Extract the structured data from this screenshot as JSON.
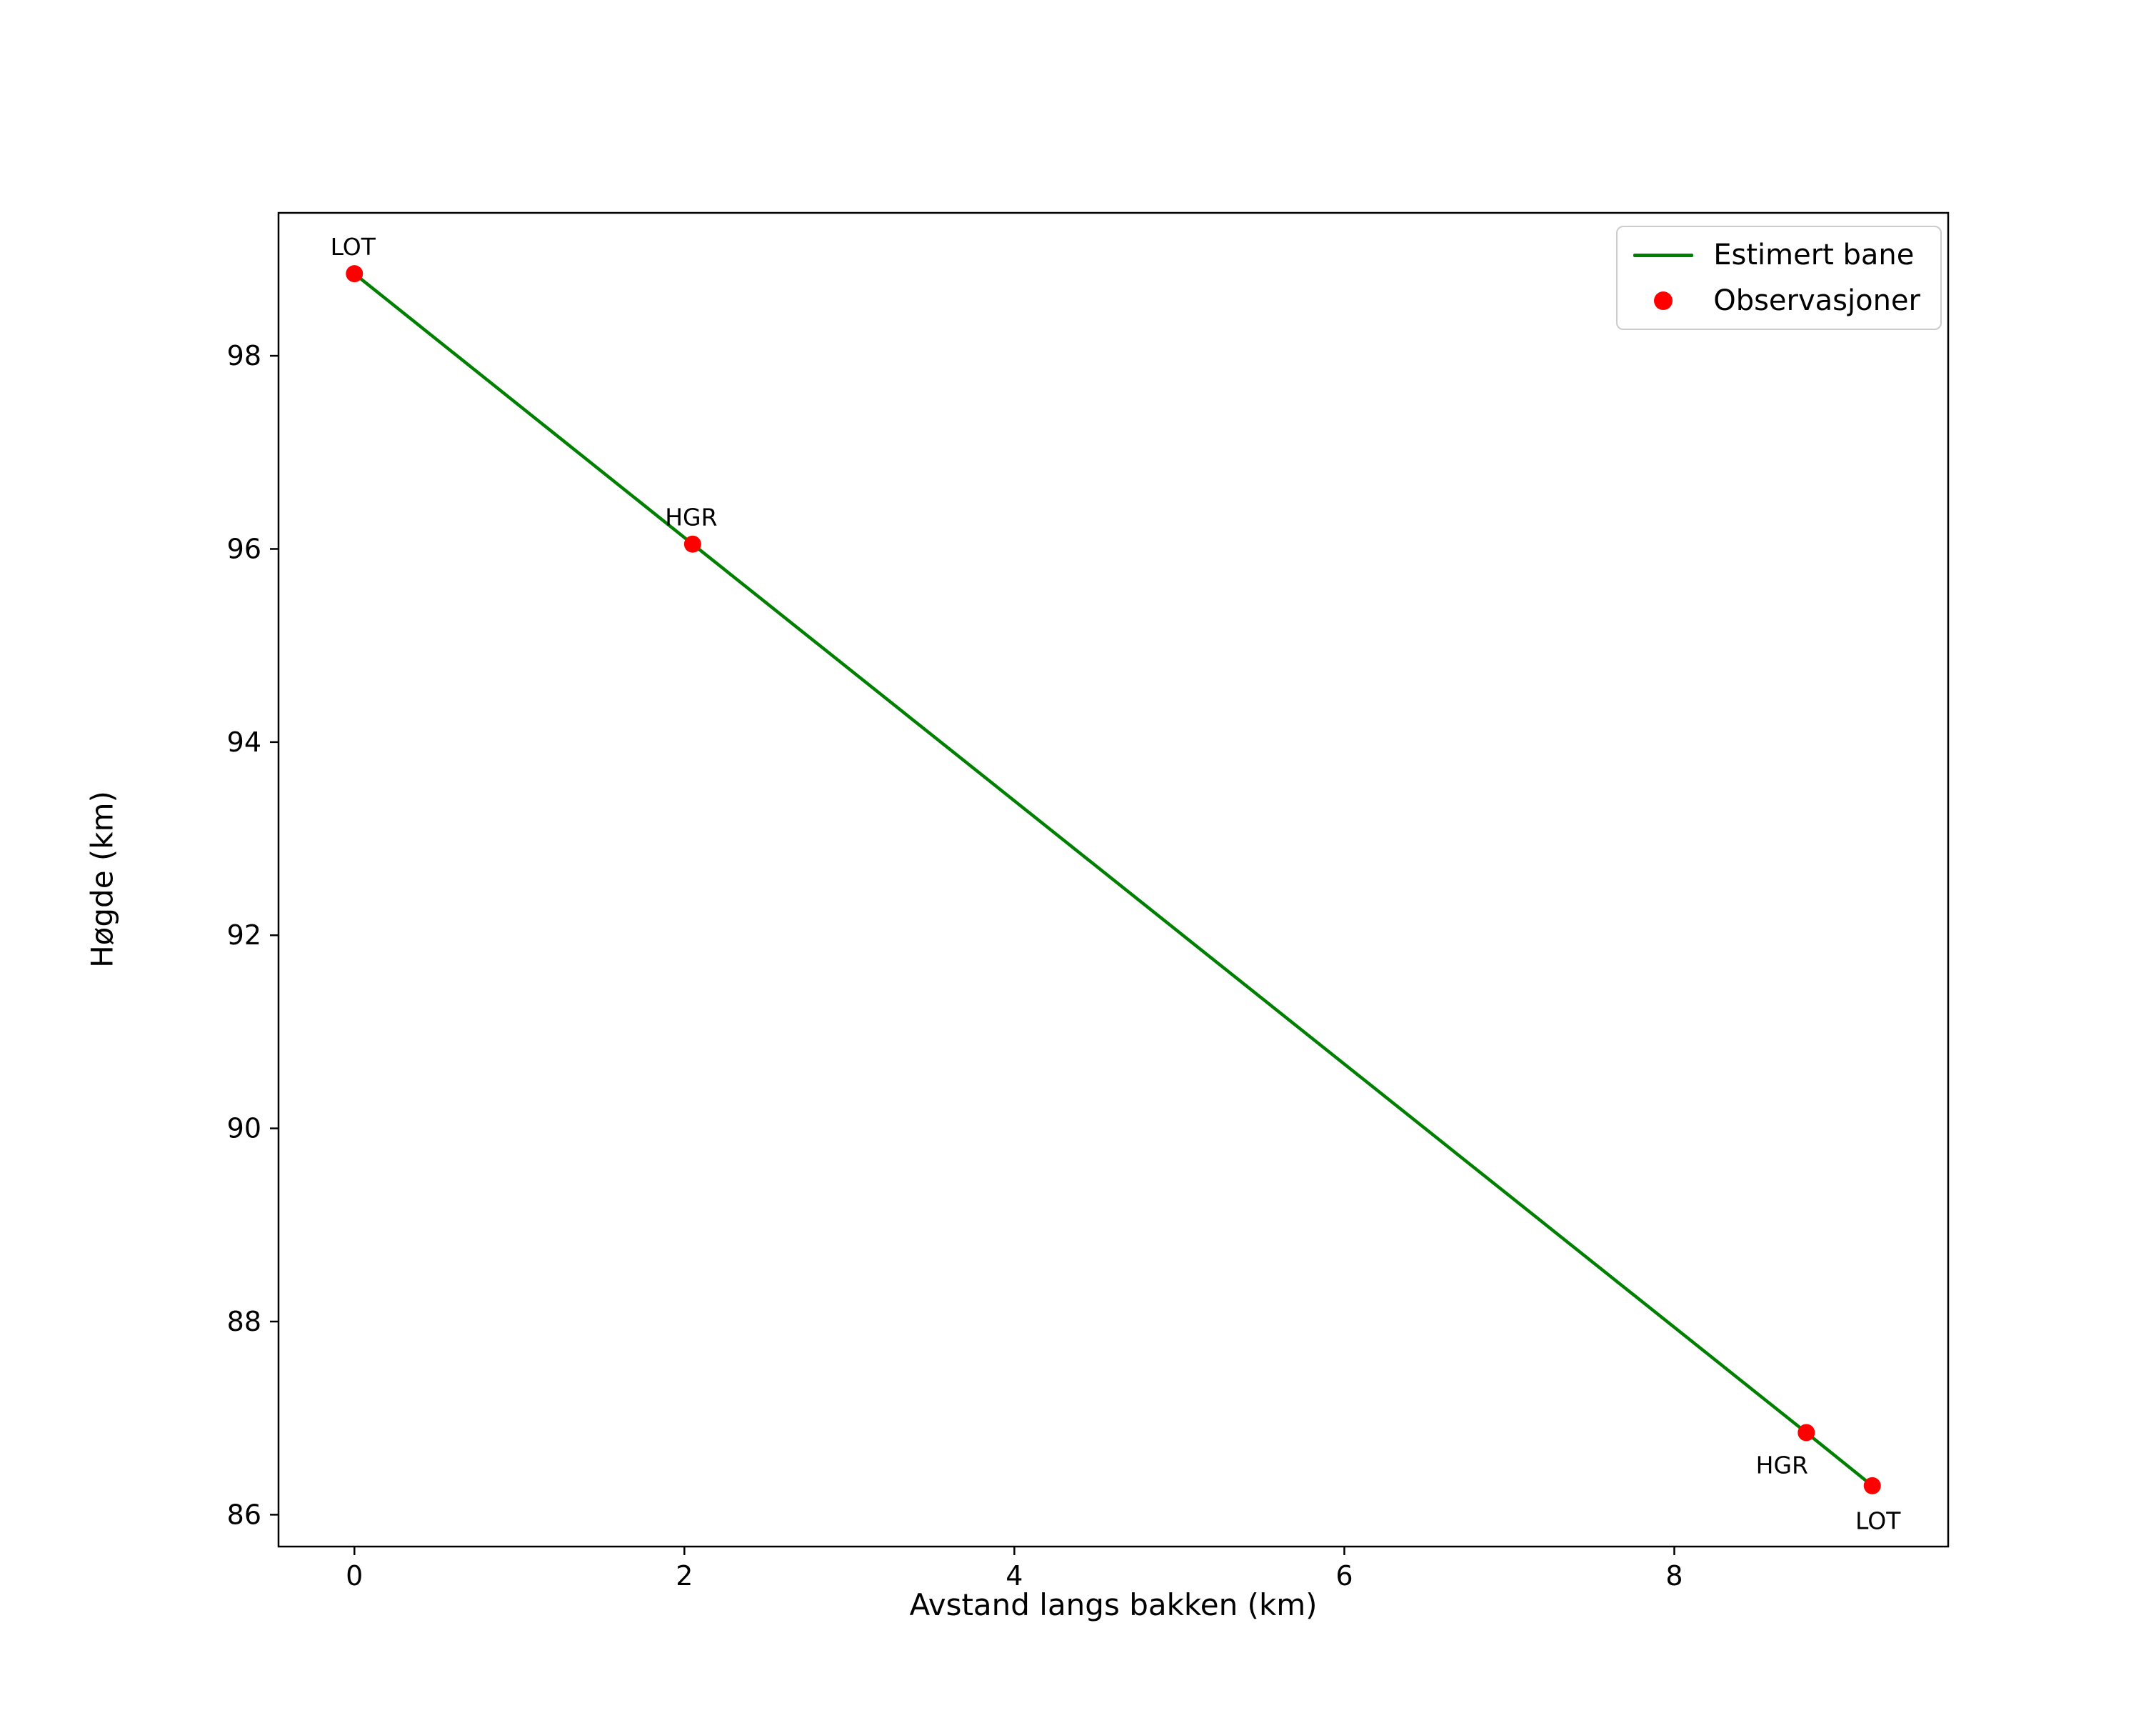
{
  "figure": {
    "background": "#ffffff"
  },
  "chart_data": {
    "type": "line",
    "title": "",
    "xlabel": "Avstand langs bakken (km)",
    "ylabel": "Høgde (km)",
    "xlim": [
      -0.46,
      9.66
    ],
    "ylim": [
      85.67,
      99.48
    ],
    "x_ticks": [
      "0",
      "2",
      "4",
      "6",
      "8"
    ],
    "x_tick_values": [
      0,
      2,
      4,
      6,
      8
    ],
    "y_ticks": [
      "86",
      "88",
      "90",
      "92",
      "94",
      "96",
      "98"
    ],
    "y_tick_values": [
      86,
      88,
      90,
      92,
      94,
      96,
      98
    ],
    "grid": false,
    "legend_position": "upper right",
    "line_series": {
      "name": "Estimert bane",
      "color": "#008000",
      "x": [
        0,
        2.05,
        8.8,
        9.2
      ],
      "y": [
        98.85,
        96.05,
        86.85,
        86.3
      ]
    },
    "scatter_series": {
      "name": "Observasjoner",
      "color": "#ff0000",
      "points": [
        {
          "x": 0.0,
          "y": 98.85,
          "label": "LOT",
          "label_pos": "above"
        },
        {
          "x": 2.05,
          "y": 96.05,
          "label": "HGR",
          "label_pos": "above"
        },
        {
          "x": 8.8,
          "y": 86.85,
          "label": "HGR",
          "label_pos": "below-left"
        },
        {
          "x": 9.2,
          "y": 86.3,
          "label": "LOT",
          "label_pos": "below"
        }
      ]
    }
  }
}
